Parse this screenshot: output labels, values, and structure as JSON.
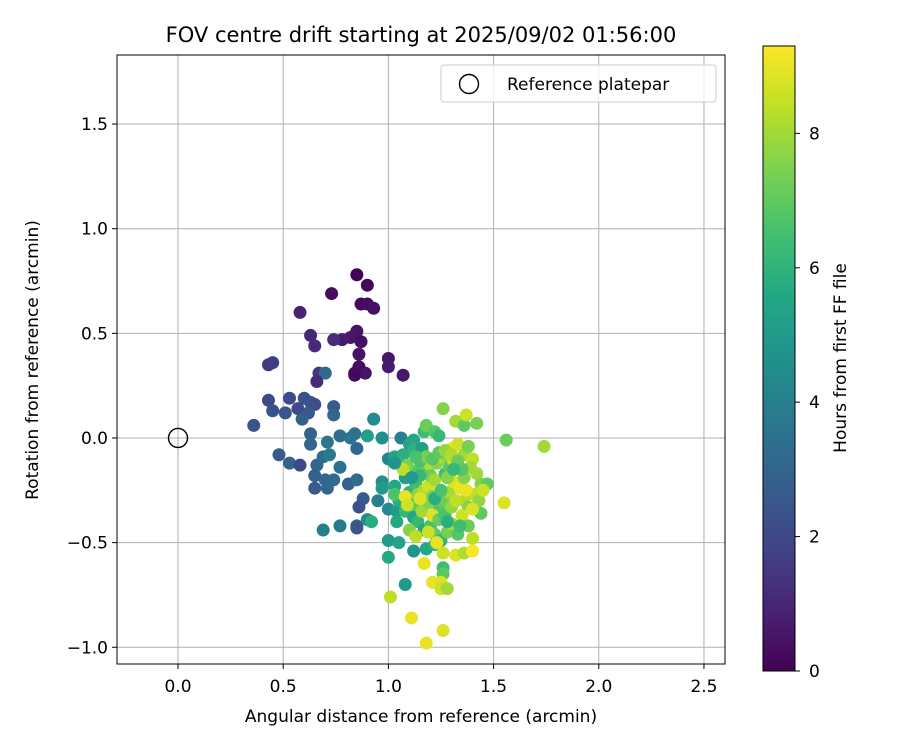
{
  "chart_data": {
    "type": "scatter",
    "title": "FOV centre drift starting at 2025/09/02 01:56:00",
    "xlabel": "Angular distance from reference (arcmin)",
    "ylabel": "Rotation from reference (arcmin)",
    "xlim": [
      -0.29,
      2.6
    ],
    "ylim": [
      -1.08,
      1.83
    ],
    "xticks": [
      0.0,
      0.5,
      1.0,
      1.5,
      2.0,
      2.5
    ],
    "xtick_labels": [
      "0.0",
      "0.5",
      "1.0",
      "1.5",
      "2.0",
      "2.5"
    ],
    "yticks": [
      -1.0,
      -0.5,
      0.0,
      0.5,
      1.0,
      1.5
    ],
    "ytick_labels": [
      "−1.0",
      "−0.5",
      "0.0",
      "0.5",
      "1.0",
      "1.5"
    ],
    "grid": true,
    "legend": {
      "placement": "top-right",
      "entries": [
        "Reference platepar"
      ]
    },
    "reference_point": {
      "x": 0.0,
      "y": 0.0,
      "label": "Reference platepar"
    },
    "colorbar": {
      "label": "Hours from first FF file",
      "colormap": "viridis",
      "range": [
        0,
        9.3
      ],
      "ticks": [
        0,
        2,
        4,
        6,
        8
      ],
      "tick_labels": [
        "0",
        "2",
        "4",
        "6",
        "8"
      ]
    },
    "points": [
      [
        0.85,
        0.78,
        0.1
      ],
      [
        0.9,
        0.73,
        0.2
      ],
      [
        0.73,
        0.69,
        0.3
      ],
      [
        0.87,
        0.64,
        0.2
      ],
      [
        0.9,
        0.64,
        0.3
      ],
      [
        0.93,
        0.62,
        0.4
      ],
      [
        0.58,
        0.6,
        0.9
      ],
      [
        0.85,
        0.51,
        0.5
      ],
      [
        0.82,
        0.48,
        0.6
      ],
      [
        0.87,
        0.46,
        0.4
      ],
      [
        0.78,
        0.47,
        0.7
      ],
      [
        0.74,
        0.47,
        1.2
      ],
      [
        0.63,
        0.49,
        1.0
      ],
      [
        0.65,
        0.44,
        1.1
      ],
      [
        0.86,
        0.4,
        0.5
      ],
      [
        1.0,
        0.38,
        0.6
      ],
      [
        0.86,
        0.34,
        0.3
      ],
      [
        0.84,
        0.31,
        0.4
      ],
      [
        0.89,
        0.31,
        0.5
      ],
      [
        0.84,
        0.3,
        0.2
      ],
      [
        1.0,
        0.34,
        0.7
      ],
      [
        1.07,
        0.3,
        0.6
      ],
      [
        0.43,
        0.35,
        1.6
      ],
      [
        0.45,
        0.36,
        1.7
      ],
      [
        0.67,
        0.31,
        1.5
      ],
      [
        0.7,
        0.31,
        3.2
      ],
      [
        0.66,
        0.27,
        1.2
      ],
      [
        0.43,
        0.18,
        2.0
      ],
      [
        0.53,
        0.19,
        2.1
      ],
      [
        0.6,
        0.19,
        2.3
      ],
      [
        0.63,
        0.17,
        2.4
      ],
      [
        0.65,
        0.16,
        2.2
      ],
      [
        0.57,
        0.14,
        2.0
      ],
      [
        0.45,
        0.13,
        2.3
      ],
      [
        0.51,
        0.12,
        2.5
      ],
      [
        0.62,
        0.12,
        2.6
      ],
      [
        0.59,
        0.09,
        2.8
      ],
      [
        0.74,
        0.15,
        2.7
      ],
      [
        0.74,
        0.11,
        3.0
      ],
      [
        0.93,
        0.09,
        4.4
      ],
      [
        0.36,
        0.06,
        2.4
      ],
      [
        0.63,
        0.02,
        2.9
      ],
      [
        0.63,
        -0.03,
        3.0
      ],
      [
        0.71,
        -0.02,
        3.6
      ],
      [
        0.77,
        0.01,
        3.4
      ],
      [
        0.82,
        0.0,
        3.6
      ],
      [
        0.84,
        0.02,
        3.5
      ],
      [
        0.85,
        -0.05,
        3.1
      ],
      [
        0.48,
        -0.08,
        2.7
      ],
      [
        0.53,
        -0.12,
        2.9
      ],
      [
        0.58,
        -0.13,
        2.0
      ],
      [
        0.66,
        -0.13,
        3.1
      ],
      [
        0.69,
        -0.09,
        3.3
      ],
      [
        0.72,
        -0.08,
        3.8
      ],
      [
        0.77,
        -0.14,
        3.5
      ],
      [
        0.65,
        -0.18,
        2.8
      ],
      [
        0.7,
        -0.2,
        3.0
      ],
      [
        0.74,
        -0.2,
        3.2
      ],
      [
        0.65,
        -0.24,
        2.7
      ],
      [
        0.71,
        -0.24,
        3.1
      ],
      [
        0.81,
        -0.22,
        2.9
      ],
      [
        0.85,
        -0.2,
        3.2
      ],
      [
        0.88,
        -0.29,
        2.7
      ],
      [
        0.86,
        -0.33,
        2.3
      ],
      [
        0.69,
        -0.44,
        3.9
      ],
      [
        0.77,
        -0.42,
        3.7
      ],
      [
        0.85,
        -0.42,
        3.0
      ],
      [
        0.85,
        -0.43,
        2.5
      ],
      [
        0.9,
        -0.39,
        4.4
      ],
      [
        0.92,
        -0.4,
        5.8
      ],
      [
        0.9,
        0.01,
        5.2
      ],
      [
        0.97,
        0.0,
        4.6
      ],
      [
        1.0,
        -0.1,
        4.2
      ],
      [
        1.03,
        -0.09,
        5.4
      ],
      [
        1.06,
        0.0,
        4.0
      ],
      [
        1.1,
        -0.03,
        5.4
      ],
      [
        1.12,
        -0.01,
        5.6
      ],
      [
        1.07,
        -0.08,
        5.8
      ],
      [
        1.12,
        -0.06,
        6.0
      ],
      [
        1.16,
        -0.05,
        5.2
      ],
      [
        1.17,
        0.03,
        6.4
      ],
      [
        1.18,
        0.06,
        7.2
      ],
      [
        1.22,
        0.03,
        6.8
      ],
      [
        1.24,
        0.01,
        6.2
      ],
      [
        1.26,
        0.14,
        7.6
      ],
      [
        1.32,
        0.08,
        8.0
      ],
      [
        1.36,
        0.06,
        7.0
      ],
      [
        1.37,
        0.11,
        8.6
      ],
      [
        1.42,
        0.07,
        7.4
      ],
      [
        1.56,
        -0.01,
        7.2
      ],
      [
        1.74,
        -0.04,
        8.0
      ],
      [
        0.97,
        -0.21,
        4.6
      ],
      [
        0.97,
        -0.24,
        5.0
      ],
      [
        1.03,
        -0.23,
        5.6
      ],
      [
        1.08,
        -0.19,
        5.2
      ],
      [
        1.1,
        -0.26,
        6.0
      ],
      [
        1.13,
        -0.22,
        6.4
      ],
      [
        1.13,
        -0.16,
        6.8
      ],
      [
        1.18,
        -0.15,
        7.0
      ],
      [
        1.2,
        -0.13,
        8.2
      ],
      [
        1.23,
        -0.12,
        7.6
      ],
      [
        1.25,
        -0.09,
        8.4
      ],
      [
        1.28,
        -0.1,
        7.8
      ],
      [
        1.3,
        -0.05,
        9.0
      ],
      [
        1.33,
        -0.03,
        8.6
      ],
      [
        1.36,
        -0.08,
        8.0
      ],
      [
        1.38,
        -0.04,
        7.4
      ],
      [
        1.4,
        -0.1,
        8.4
      ],
      [
        1.42,
        -0.17,
        8.0
      ],
      [
        1.44,
        -0.22,
        7.6
      ],
      [
        1.47,
        -0.22,
        7.0
      ],
      [
        1.55,
        -0.31,
        8.8
      ],
      [
        0.95,
        -0.3,
        4.0
      ],
      [
        1.0,
        -0.34,
        4.4
      ],
      [
        1.04,
        -0.35,
        5.0
      ],
      [
        1.05,
        -0.3,
        5.8
      ],
      [
        1.08,
        -0.35,
        6.2
      ],
      [
        1.1,
        -0.3,
        6.6
      ],
      [
        1.12,
        -0.33,
        7.0
      ],
      [
        1.14,
        -0.27,
        7.8
      ],
      [
        1.17,
        -0.25,
        8.2
      ],
      [
        1.19,
        -0.23,
        8.6
      ],
      [
        1.21,
        -0.28,
        7.4
      ],
      [
        1.24,
        -0.33,
        6.8
      ],
      [
        1.26,
        -0.3,
        7.2
      ],
      [
        1.29,
        -0.26,
        8.0
      ],
      [
        1.31,
        -0.21,
        8.8
      ],
      [
        1.34,
        -0.24,
        9.0
      ],
      [
        1.36,
        -0.3,
        8.2
      ],
      [
        1.38,
        -0.33,
        7.6
      ],
      [
        1.41,
        -0.27,
        8.4
      ],
      [
        1.43,
        -0.3,
        7.8
      ],
      [
        1.45,
        -0.25,
        8.6
      ],
      [
        1.12,
        -0.38,
        5.4
      ],
      [
        1.14,
        -0.4,
        6.2
      ],
      [
        1.17,
        -0.44,
        5.6
      ],
      [
        1.2,
        -0.42,
        6.6
      ],
      [
        1.22,
        -0.46,
        7.0
      ],
      [
        1.25,
        -0.49,
        6.0
      ],
      [
        1.28,
        -0.45,
        7.4
      ],
      [
        1.3,
        -0.41,
        8.0
      ],
      [
        1.33,
        -0.46,
        6.8
      ],
      [
        1.35,
        -0.37,
        8.6
      ],
      [
        1.38,
        -0.42,
        7.2
      ],
      [
        1.4,
        -0.48,
        8.4
      ],
      [
        1.44,
        -0.36,
        7.0
      ],
      [
        1.0,
        -0.49,
        5.0
      ],
      [
        1.05,
        -0.5,
        5.4
      ],
      [
        1.12,
        -0.54,
        4.8
      ],
      [
        1.18,
        -0.53,
        5.6
      ],
      [
        1.22,
        -0.51,
        6.0
      ],
      [
        1.23,
        -0.5,
        9.0
      ],
      [
        1.26,
        -0.55,
        8.6
      ],
      [
        1.32,
        -0.56,
        8.8
      ],
      [
        1.36,
        -0.55,
        8.2
      ],
      [
        1.4,
        -0.54,
        9.2
      ],
      [
        1.0,
        -0.57,
        5.6
      ],
      [
        1.17,
        -0.6,
        9.0
      ],
      [
        1.26,
        -0.62,
        6.4
      ],
      [
        1.26,
        -0.65,
        7.0
      ],
      [
        1.08,
        -0.7,
        5.0
      ],
      [
        1.21,
        -0.69,
        9.0
      ],
      [
        1.25,
        -0.69,
        8.8
      ],
      [
        1.25,
        -0.72,
        8.6
      ],
      [
        1.28,
        -0.72,
        8.0
      ],
      [
        1.01,
        -0.76,
        8.4
      ],
      [
        1.11,
        -0.86,
        9.0
      ],
      [
        1.26,
        -0.92,
        8.8
      ],
      [
        1.18,
        -0.98,
        9.0
      ],
      [
        1.03,
        -0.27,
        6.6
      ],
      [
        1.05,
        -0.12,
        6.0
      ],
      [
        1.09,
        -0.13,
        7.4
      ],
      [
        1.15,
        -0.11,
        6.6
      ],
      [
        1.2,
        -0.18,
        7.2
      ],
      [
        1.22,
        -0.2,
        8.0
      ],
      [
        1.27,
        -0.17,
        6.4
      ],
      [
        1.29,
        -0.14,
        7.0
      ],
      [
        1.31,
        -0.11,
        8.6
      ],
      [
        1.34,
        -0.15,
        8.2
      ],
      [
        1.36,
        -0.19,
        7.6
      ],
      [
        1.39,
        -0.14,
        8.0
      ],
      [
        1.1,
        -0.44,
        7.6
      ],
      [
        1.13,
        -0.47,
        8.4
      ],
      [
        1.16,
        -0.35,
        8.0
      ],
      [
        1.19,
        -0.31,
        7.6
      ],
      [
        1.21,
        -0.37,
        8.8
      ],
      [
        1.24,
        -0.39,
        7.2
      ],
      [
        1.27,
        -0.37,
        6.6
      ],
      [
        1.3,
        -0.33,
        7.8
      ],
      [
        1.32,
        -0.3,
        8.4
      ],
      [
        1.15,
        -0.18,
        6.2
      ],
      [
        1.18,
        -0.09,
        7.4
      ],
      [
        1.21,
        -0.1,
        6.8
      ],
      [
        1.24,
        -0.07,
        7.0
      ],
      [
        1.27,
        -0.06,
        7.8
      ],
      [
        1.3,
        -0.08,
        8.2
      ],
      [
        1.33,
        -0.11,
        7.2
      ],
      [
        1.35,
        -0.15,
        6.8
      ],
      [
        1.37,
        -0.25,
        9.0
      ],
      [
        1.4,
        -0.34,
        8.8
      ],
      [
        1.08,
        -0.28,
        9.0
      ],
      [
        1.09,
        -0.32,
        8.6
      ],
      [
        1.07,
        -0.15,
        8.4
      ],
      [
        1.22,
        -0.29,
        5.8
      ],
      [
        1.25,
        -0.25,
        6.6
      ],
      [
        1.28,
        -0.19,
        7.6
      ],
      [
        1.31,
        -0.15,
        6.2
      ],
      [
        1.13,
        -0.09,
        6.6
      ],
      [
        1.11,
        -0.19,
        5.0
      ],
      [
        1.03,
        -0.12,
        4.8
      ],
      [
        1.04,
        -0.4,
        5.6
      ],
      [
        1.15,
        -0.29,
        8.8
      ],
      [
        1.19,
        -0.45,
        8.6
      ],
      [
        1.28,
        -0.4,
        5.8
      ],
      [
        1.34,
        -0.42,
        6.4
      ]
    ]
  }
}
